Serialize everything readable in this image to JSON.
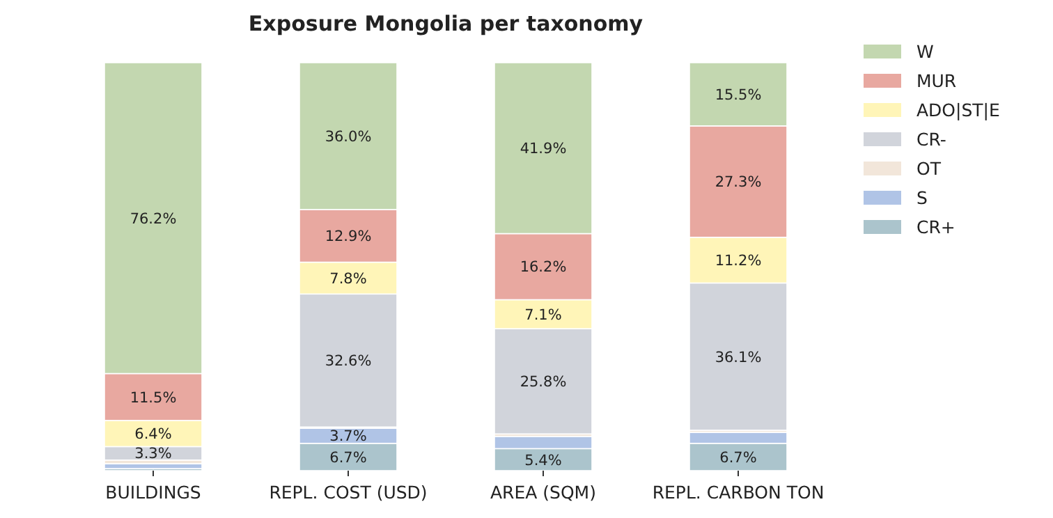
{
  "chart_data": {
    "type": "bar",
    "title": "Exposure Mongolia per taxonomy",
    "stacked": true,
    "categories": [
      "BUILDINGS",
      "REPL. COST (USD)",
      "AREA (SQM)",
      "REPL. CARBON TON"
    ],
    "ylim": [
      0,
      100
    ],
    "tick_labels": "x",
    "legend": "top right",
    "grid": false,
    "series": [
      {
        "name": "CR+",
        "color": "#abc4cc",
        "values": [
          0.5,
          6.7,
          5.4,
          6.7
        ],
        "value_labels": [
          null,
          "6.7%",
          "5.4%",
          "6.7%"
        ]
      },
      {
        "name": "S",
        "color": "#b0c4e6",
        "values": [
          1.2,
          3.7,
          3.0,
          2.7
        ],
        "value_labels": [
          null,
          "3.7%",
          null,
          null
        ]
      },
      {
        "name": "OT",
        "color": "#f2e6da",
        "values": [
          0.9,
          0.3,
          0.6,
          0.5
        ],
        "value_labels": [
          null,
          null,
          null,
          null
        ]
      },
      {
        "name": "CR-",
        "color": "#d1d4db",
        "values": [
          3.3,
          32.6,
          25.8,
          36.1
        ],
        "value_labels": [
          "3.3%",
          "32.6%",
          "25.8%",
          "36.1%"
        ]
      },
      {
        "name": "ADO|ST|E",
        "color": "#fff5b8",
        "values": [
          6.4,
          7.8,
          7.1,
          11.2
        ],
        "value_labels": [
          "6.4%",
          "7.8%",
          "7.1%",
          "11.2%"
        ]
      },
      {
        "name": "MUR",
        "color": "#e8a8a0",
        "values": [
          11.5,
          12.9,
          16.2,
          27.3
        ],
        "value_labels": [
          "11.5%",
          "12.9%",
          "16.2%",
          "27.3%"
        ]
      },
      {
        "name": "W",
        "color": "#c3d7b0",
        "values": [
          76.2,
          36.0,
          41.9,
          15.5
        ],
        "value_labels": [
          "76.2%",
          "36.0%",
          "41.9%",
          "15.5%"
        ]
      }
    ]
  }
}
